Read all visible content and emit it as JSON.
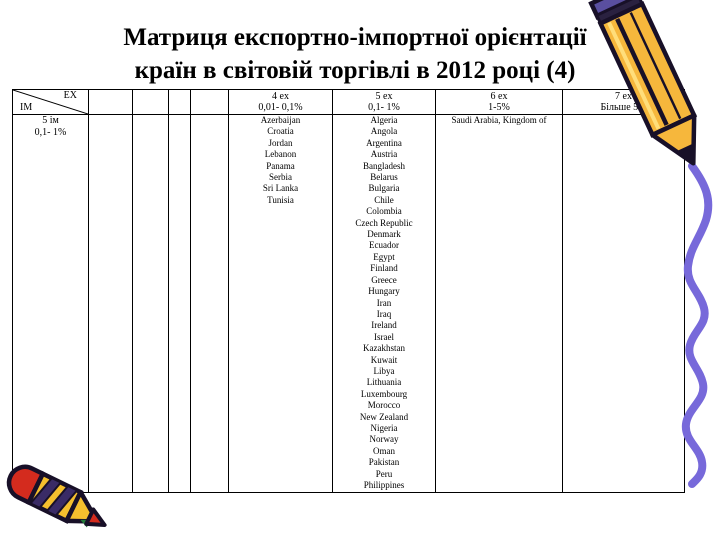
{
  "slide": {
    "title_line1": "Матриця експортно-імпортної орієнтації",
    "title_line2": "країн в світовій торгівлі в 2012 році (4)"
  },
  "matrix": {
    "corner": {
      "ex": "EX",
      "im": "IM"
    },
    "row_header": {
      "line1": "5 ім",
      "line2": "0,1- 1%"
    },
    "col_groups": [
      {
        "h1": "4 ex",
        "h2": "0,01- 0,1%",
        "countries": [
          "Azerbaijan",
          "Croatia",
          "Jordan",
          "Lebanon",
          "Panama",
          "Serbia",
          "Sri Lanka",
          "Tunisia"
        ]
      },
      {
        "h1": "5 ex",
        "h2": "0,1- 1%",
        "countries": [
          "Algeria",
          "Angola",
          "Argentina",
          "Austria",
          "Bangladesh",
          "Belarus",
          "Bulgaria",
          "Chile",
          "Colombia",
          "Czech Republic",
          "Denmark",
          "Ecuador",
          "Egypt",
          "Finland",
          "Greece",
          "Hungary",
          "Iran",
          "Iraq",
          "Ireland",
          "Israel",
          "Kazakhstan",
          "Kuwait",
          "Libya",
          "Lithuania",
          "Luxembourg",
          "Morocco",
          "New Zealand",
          "Nigeria",
          "Norway",
          "Oman",
          "Pakistan",
          "Peru",
          "Philippines"
        ]
      },
      {
        "h1": "6 ex",
        "h2": "1-5%",
        "countries": [
          "Saudi Arabia, Kingdom of"
        ]
      },
      {
        "h1": "7 ex",
        "h2": "Більше 5%",
        "countries": []
      }
    ]
  },
  "icons": {
    "top_right": "pencil-icon",
    "right_side": "squiggle-line-icon",
    "bottom_left": "crayon-icon"
  },
  "colors": {
    "background": "#ffffff",
    "text": "#000000",
    "table_border": "#000000",
    "pencil_yellow": "#F6B73C",
    "pencil_highlight": "#FFDE7A",
    "pencil_eraser_purple": "#5A4FA0",
    "squiggle_purple": "#7769DA",
    "crayon_red": "#D42B1E",
    "crayon_yellow": "#F5BF2E",
    "crayon_stripe": "#3A2B66",
    "outline_dark": "#181028"
  }
}
